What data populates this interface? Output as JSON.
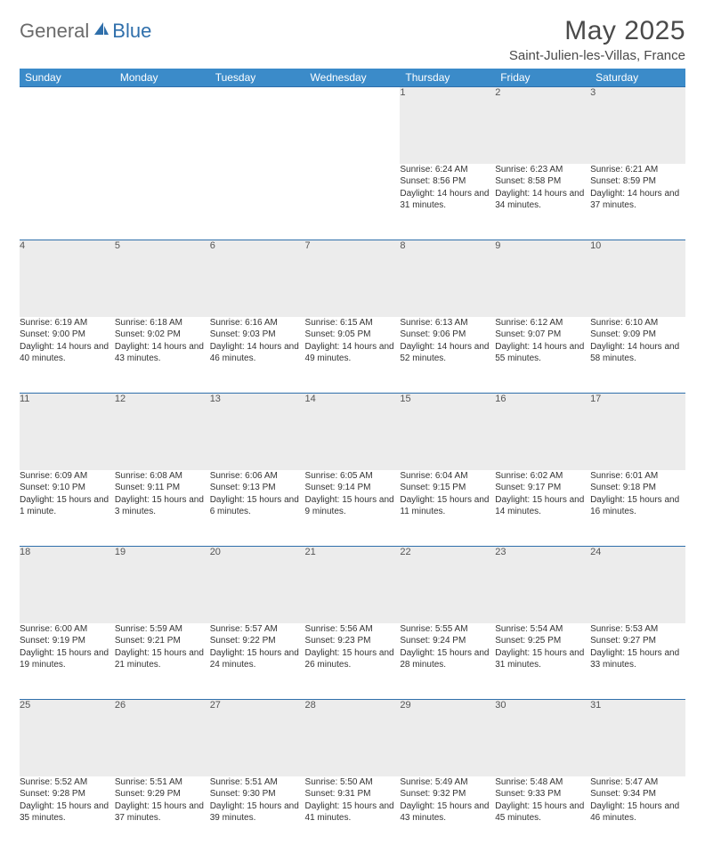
{
  "brand": {
    "part1": "General",
    "part2": "Blue"
  },
  "title": "May 2025",
  "location": "Saint-Julien-les-Villas, France",
  "colors": {
    "header_bg": "#3b8bc9",
    "header_text": "#ffffff",
    "daynum_bg": "#ececec",
    "border": "#2f6fab",
    "text": "#333333",
    "logo_gray": "#6b6b6b",
    "logo_blue": "#2f6fab"
  },
  "weekdays": [
    "Sunday",
    "Monday",
    "Tuesday",
    "Wednesday",
    "Thursday",
    "Friday",
    "Saturday"
  ],
  "weeks": [
    [
      null,
      null,
      null,
      null,
      {
        "n": "1",
        "sr": "6:24 AM",
        "ss": "8:56 PM",
        "dl": "14 hours and 31 minutes."
      },
      {
        "n": "2",
        "sr": "6:23 AM",
        "ss": "8:58 PM",
        "dl": "14 hours and 34 minutes."
      },
      {
        "n": "3",
        "sr": "6:21 AM",
        "ss": "8:59 PM",
        "dl": "14 hours and 37 minutes."
      }
    ],
    [
      {
        "n": "4",
        "sr": "6:19 AM",
        "ss": "9:00 PM",
        "dl": "14 hours and 40 minutes."
      },
      {
        "n": "5",
        "sr": "6:18 AM",
        "ss": "9:02 PM",
        "dl": "14 hours and 43 minutes."
      },
      {
        "n": "6",
        "sr": "6:16 AM",
        "ss": "9:03 PM",
        "dl": "14 hours and 46 minutes."
      },
      {
        "n": "7",
        "sr": "6:15 AM",
        "ss": "9:05 PM",
        "dl": "14 hours and 49 minutes."
      },
      {
        "n": "8",
        "sr": "6:13 AM",
        "ss": "9:06 PM",
        "dl": "14 hours and 52 minutes."
      },
      {
        "n": "9",
        "sr": "6:12 AM",
        "ss": "9:07 PM",
        "dl": "14 hours and 55 minutes."
      },
      {
        "n": "10",
        "sr": "6:10 AM",
        "ss": "9:09 PM",
        "dl": "14 hours and 58 minutes."
      }
    ],
    [
      {
        "n": "11",
        "sr": "6:09 AM",
        "ss": "9:10 PM",
        "dl": "15 hours and 1 minute."
      },
      {
        "n": "12",
        "sr": "6:08 AM",
        "ss": "9:11 PM",
        "dl": "15 hours and 3 minutes."
      },
      {
        "n": "13",
        "sr": "6:06 AM",
        "ss": "9:13 PM",
        "dl": "15 hours and 6 minutes."
      },
      {
        "n": "14",
        "sr": "6:05 AM",
        "ss": "9:14 PM",
        "dl": "15 hours and 9 minutes."
      },
      {
        "n": "15",
        "sr": "6:04 AM",
        "ss": "9:15 PM",
        "dl": "15 hours and 11 minutes."
      },
      {
        "n": "16",
        "sr": "6:02 AM",
        "ss": "9:17 PM",
        "dl": "15 hours and 14 minutes."
      },
      {
        "n": "17",
        "sr": "6:01 AM",
        "ss": "9:18 PM",
        "dl": "15 hours and 16 minutes."
      }
    ],
    [
      {
        "n": "18",
        "sr": "6:00 AM",
        "ss": "9:19 PM",
        "dl": "15 hours and 19 minutes."
      },
      {
        "n": "19",
        "sr": "5:59 AM",
        "ss": "9:21 PM",
        "dl": "15 hours and 21 minutes."
      },
      {
        "n": "20",
        "sr": "5:57 AM",
        "ss": "9:22 PM",
        "dl": "15 hours and 24 minutes."
      },
      {
        "n": "21",
        "sr": "5:56 AM",
        "ss": "9:23 PM",
        "dl": "15 hours and 26 minutes."
      },
      {
        "n": "22",
        "sr": "5:55 AM",
        "ss": "9:24 PM",
        "dl": "15 hours and 28 minutes."
      },
      {
        "n": "23",
        "sr": "5:54 AM",
        "ss": "9:25 PM",
        "dl": "15 hours and 31 minutes."
      },
      {
        "n": "24",
        "sr": "5:53 AM",
        "ss": "9:27 PM",
        "dl": "15 hours and 33 minutes."
      }
    ],
    [
      {
        "n": "25",
        "sr": "5:52 AM",
        "ss": "9:28 PM",
        "dl": "15 hours and 35 minutes."
      },
      {
        "n": "26",
        "sr": "5:51 AM",
        "ss": "9:29 PM",
        "dl": "15 hours and 37 minutes."
      },
      {
        "n": "27",
        "sr": "5:51 AM",
        "ss": "9:30 PM",
        "dl": "15 hours and 39 minutes."
      },
      {
        "n": "28",
        "sr": "5:50 AM",
        "ss": "9:31 PM",
        "dl": "15 hours and 41 minutes."
      },
      {
        "n": "29",
        "sr": "5:49 AM",
        "ss": "9:32 PM",
        "dl": "15 hours and 43 minutes."
      },
      {
        "n": "30",
        "sr": "5:48 AM",
        "ss": "9:33 PM",
        "dl": "15 hours and 45 minutes."
      },
      {
        "n": "31",
        "sr": "5:47 AM",
        "ss": "9:34 PM",
        "dl": "15 hours and 46 minutes."
      }
    ]
  ],
  "labels": {
    "sunrise": "Sunrise: ",
    "sunset": "Sunset: ",
    "daylight": "Daylight: "
  }
}
